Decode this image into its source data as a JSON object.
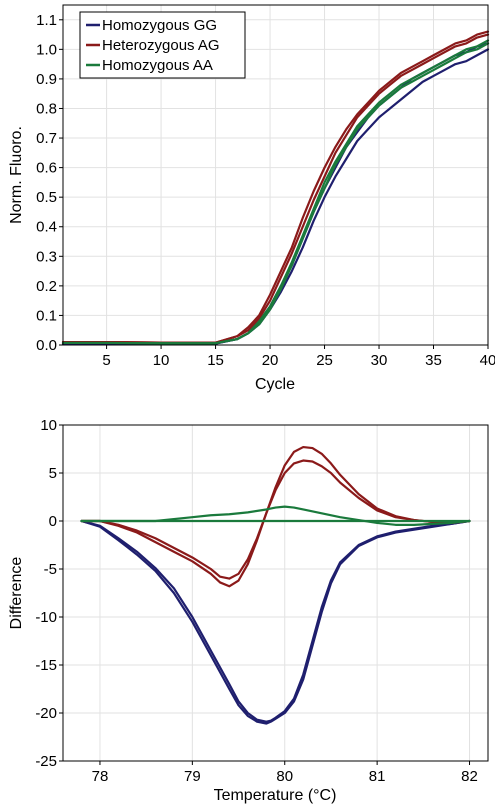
{
  "colors": {
    "gg": "#1f1f6e",
    "ag": "#8b1a1a",
    "aa": "#1a7a3c"
  },
  "chart_data": [
    {
      "type": "line",
      "title": "",
      "xlabel": "Cycle",
      "ylabel": "Norm. Fluoro.",
      "xlim": [
        1,
        40
      ],
      "ylim": [
        0,
        1.15
      ],
      "xticks": [
        5,
        10,
        15,
        20,
        25,
        30,
        35,
        40
      ],
      "yticks": [
        0.0,
        0.1,
        0.2,
        0.3,
        0.4,
        0.5,
        0.6,
        0.7,
        0.8,
        0.9,
        1.0,
        1.1
      ],
      "ytick_labels": [
        "0.0",
        "0.1",
        "0.2",
        "0.3",
        "0.4",
        "0.5",
        "0.6",
        "0.7",
        "0.8",
        "0.9",
        "1.0",
        "1.1"
      ],
      "grid": true,
      "legend_position": "top-left",
      "legend": [
        {
          "label": "Homozygous GG",
          "color": "#1f1f6e"
        },
        {
          "label": "Heterozygous AG",
          "color": "#8b1a1a"
        },
        {
          "label": "Homozygous AA",
          "color": "#1a7a3c"
        }
      ],
      "series": [
        {
          "group": "GG",
          "color": "#1f1f6e",
          "x": [
            1,
            5,
            10,
            15,
            17,
            18,
            19,
            20,
            21,
            22,
            23,
            24,
            25,
            26,
            27,
            28,
            29,
            30,
            31,
            32,
            33,
            34,
            35,
            36,
            37,
            38,
            39,
            40
          ],
          "y": [
            0.005,
            0.005,
            0.005,
            0.005,
            0.02,
            0.04,
            0.07,
            0.12,
            0.18,
            0.25,
            0.33,
            0.42,
            0.5,
            0.57,
            0.63,
            0.69,
            0.73,
            0.77,
            0.8,
            0.83,
            0.86,
            0.89,
            0.91,
            0.93,
            0.95,
            0.96,
            0.98,
            1.0
          ]
        },
        {
          "group": "GG",
          "color": "#1f1f6e",
          "x": [
            1,
            5,
            10,
            15,
            17,
            18,
            19,
            20,
            21,
            22,
            23,
            24,
            25,
            26,
            27,
            28,
            29,
            30,
            31,
            32,
            33,
            34,
            35,
            36,
            37,
            38,
            39,
            40
          ],
          "y": [
            0.005,
            0.005,
            0.005,
            0.005,
            0.02,
            0.04,
            0.08,
            0.13,
            0.2,
            0.27,
            0.36,
            0.45,
            0.53,
            0.6,
            0.67,
            0.72,
            0.77,
            0.81,
            0.84,
            0.87,
            0.9,
            0.92,
            0.94,
            0.96,
            0.98,
            0.99,
            1.01,
            1.02
          ]
        },
        {
          "group": "AG",
          "color": "#8b1a1a",
          "x": [
            1,
            5,
            10,
            15,
            17,
            18,
            19,
            20,
            21,
            22,
            23,
            24,
            25,
            26,
            27,
            28,
            29,
            30,
            31,
            32,
            33,
            34,
            35,
            36,
            37,
            38,
            39,
            40
          ],
          "y": [
            0.01,
            0.01,
            0.008,
            0.008,
            0.03,
            0.06,
            0.1,
            0.17,
            0.25,
            0.33,
            0.43,
            0.52,
            0.6,
            0.67,
            0.73,
            0.78,
            0.82,
            0.86,
            0.89,
            0.92,
            0.94,
            0.96,
            0.98,
            1.0,
            1.02,
            1.03,
            1.05,
            1.06
          ]
        },
        {
          "group": "AG",
          "color": "#8b1a1a",
          "x": [
            1,
            5,
            10,
            15,
            17,
            18,
            19,
            20,
            21,
            22,
            23,
            24,
            25,
            26,
            27,
            28,
            29,
            30,
            31,
            32,
            33,
            34,
            35,
            36,
            37,
            38,
            39,
            40
          ],
          "y": [
            0.01,
            0.01,
            0.008,
            0.008,
            0.03,
            0.05,
            0.09,
            0.15,
            0.23,
            0.31,
            0.4,
            0.49,
            0.57,
            0.65,
            0.71,
            0.77,
            0.81,
            0.85,
            0.88,
            0.91,
            0.93,
            0.95,
            0.97,
            0.99,
            1.01,
            1.02,
            1.04,
            1.05
          ]
        },
        {
          "group": "AA",
          "color": "#1a7a3c",
          "x": [
            1,
            5,
            10,
            15,
            17,
            18,
            19,
            20,
            21,
            22,
            23,
            24,
            25,
            26,
            27,
            28,
            29,
            30,
            31,
            32,
            33,
            34,
            35,
            36,
            37,
            38,
            39,
            40
          ],
          "y": [
            0.007,
            0.007,
            0.006,
            0.006,
            0.02,
            0.04,
            0.08,
            0.13,
            0.2,
            0.28,
            0.37,
            0.46,
            0.55,
            0.62,
            0.68,
            0.74,
            0.78,
            0.82,
            0.85,
            0.88,
            0.9,
            0.92,
            0.94,
            0.96,
            0.98,
            1.0,
            1.01,
            1.03
          ]
        },
        {
          "group": "AA",
          "color": "#1a7a3c",
          "x": [
            1,
            5,
            10,
            15,
            17,
            18,
            19,
            20,
            21,
            22,
            23,
            24,
            25,
            26,
            27,
            28,
            29,
            30,
            31,
            32,
            33,
            34,
            35,
            36,
            37,
            38,
            39,
            40
          ],
          "y": [
            0.007,
            0.007,
            0.006,
            0.006,
            0.02,
            0.04,
            0.07,
            0.12,
            0.19,
            0.27,
            0.36,
            0.45,
            0.53,
            0.61,
            0.67,
            0.73,
            0.77,
            0.81,
            0.84,
            0.87,
            0.89,
            0.91,
            0.93,
            0.95,
            0.97,
            0.99,
            1.0,
            1.02
          ]
        }
      ]
    },
    {
      "type": "line",
      "title": "",
      "xlabel": "Temperature (°C)",
      "ylabel": "Difference",
      "xlim": [
        77.6,
        82.2
      ],
      "ylim": [
        -25,
        10
      ],
      "xticks": [
        78,
        79,
        80,
        81,
        82
      ],
      "yticks": [
        10,
        5,
        0,
        -5,
        -10,
        -15,
        -20,
        -25
      ],
      "grid": true,
      "series": [
        {
          "group": "GG",
          "color": "#1f1f6e",
          "x": [
            77.8,
            78.0,
            78.2,
            78.4,
            78.6,
            78.8,
            79.0,
            79.2,
            79.4,
            79.5,
            79.6,
            79.7,
            79.8,
            79.85,
            79.9,
            80.0,
            80.1,
            80.2,
            80.3,
            80.4,
            80.5,
            80.6,
            80.8,
            81.0,
            81.2,
            81.4,
            81.6,
            81.8,
            82.0
          ],
          "y": [
            0,
            -0.6,
            -2.0,
            -3.5,
            -5.2,
            -7.5,
            -10.5,
            -14.0,
            -17.5,
            -19.2,
            -20.3,
            -20.9,
            -21.1,
            -20.9,
            -20.6,
            -20.0,
            -18.8,
            -16.5,
            -13.0,
            -9.5,
            -6.5,
            -4.5,
            -2.6,
            -1.7,
            -1.2,
            -0.9,
            -0.6,
            -0.3,
            0
          ]
        },
        {
          "group": "GG",
          "color": "#1f1f6e",
          "x": [
            77.8,
            78.0,
            78.2,
            78.4,
            78.6,
            78.8,
            79.0,
            79.2,
            79.4,
            79.5,
            79.6,
            79.7,
            79.8,
            79.85,
            79.9,
            80.0,
            80.1,
            80.2,
            80.3,
            80.4,
            80.5,
            80.6,
            80.8,
            81.0,
            81.2,
            81.4,
            81.6,
            81.8,
            82.0
          ],
          "y": [
            0,
            -0.5,
            -1.8,
            -3.2,
            -4.9,
            -7.0,
            -10.0,
            -13.5,
            -17.0,
            -18.8,
            -20.0,
            -20.7,
            -20.9,
            -20.8,
            -20.5,
            -19.8,
            -18.5,
            -16.0,
            -12.5,
            -9.0,
            -6.2,
            -4.3,
            -2.5,
            -1.6,
            -1.1,
            -0.8,
            -0.5,
            -0.3,
            0
          ]
        },
        {
          "group": "AG",
          "color": "#8b1a1a",
          "x": [
            77.8,
            78.0,
            78.2,
            78.4,
            78.6,
            78.8,
            79.0,
            79.2,
            79.3,
            79.4,
            79.5,
            79.6,
            79.7,
            79.8,
            79.9,
            80.0,
            80.1,
            80.2,
            80.3,
            80.4,
            80.5,
            80.6,
            80.8,
            81.0,
            81.2,
            81.4,
            81.6,
            81.8,
            82.0
          ],
          "y": [
            0,
            0,
            -0.5,
            -1.2,
            -2.2,
            -3.2,
            -4.2,
            -5.5,
            -6.4,
            -6.8,
            -6.2,
            -4.5,
            -2.0,
            0.8,
            3.5,
            5.8,
            7.2,
            7.7,
            7.6,
            7.0,
            6.0,
            4.8,
            2.8,
            1.3,
            0.5,
            0.1,
            -0.1,
            -0.2,
            0
          ]
        },
        {
          "group": "AG",
          "color": "#8b1a1a",
          "x": [
            77.8,
            78.0,
            78.2,
            78.4,
            78.6,
            78.8,
            79.0,
            79.2,
            79.3,
            79.4,
            79.5,
            79.6,
            79.7,
            79.8,
            79.9,
            80.0,
            80.1,
            80.2,
            80.3,
            80.4,
            80.5,
            80.6,
            80.8,
            81.0,
            81.2,
            81.4,
            81.6,
            81.8,
            82.0
          ],
          "y": [
            0,
            0,
            -0.4,
            -1.0,
            -1.8,
            -2.8,
            -3.8,
            -5.0,
            -5.8,
            -6.0,
            -5.5,
            -4.0,
            -1.8,
            0.8,
            3.2,
            5.0,
            6.0,
            6.3,
            6.2,
            5.7,
            5.0,
            4.0,
            2.4,
            1.1,
            0.4,
            0.1,
            -0.1,
            -0.2,
            0
          ]
        },
        {
          "group": "AA",
          "color": "#1a7a3c",
          "x": [
            77.8,
            78.2,
            78.6,
            79.0,
            79.2,
            79.4,
            79.6,
            79.8,
            79.9,
            80.0,
            80.1,
            80.2,
            80.4,
            80.6,
            80.8,
            81.0,
            81.2,
            81.4,
            81.6,
            81.8,
            82.0
          ],
          "y": [
            0,
            0,
            0,
            0.4,
            0.6,
            0.7,
            0.9,
            1.2,
            1.4,
            1.5,
            1.4,
            1.2,
            0.8,
            0.4,
            0.1,
            -0.2,
            -0.4,
            -0.4,
            -0.3,
            -0.2,
            0
          ]
        },
        {
          "group": "AA",
          "color": "#1a7a3c",
          "x": [
            77.8,
            78.2,
            78.6,
            79.0,
            79.4,
            79.8,
            80.2,
            80.6,
            81.0,
            81.4,
            81.8,
            82.0
          ],
          "y": [
            0,
            0,
            0,
            0,
            0,
            0,
            0,
            0,
            0,
            0,
            0,
            0
          ]
        }
      ]
    }
  ]
}
